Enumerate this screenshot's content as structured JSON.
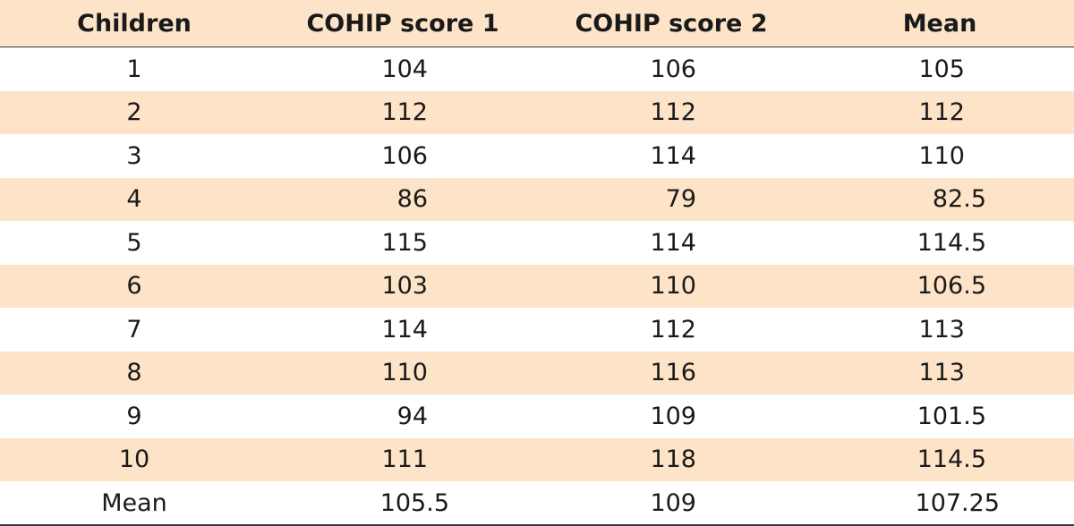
{
  "table": {
    "headers": [
      "Children",
      "COHIP score 1",
      "COHIP score 2",
      "Mean"
    ],
    "rows": [
      [
        "1",
        "104",
        "106",
        "105"
      ],
      [
        "2",
        "112",
        "112",
        "112"
      ],
      [
        "3",
        "106",
        "114",
        "110"
      ],
      [
        "4",
        "86",
        "79",
        "82.5"
      ],
      [
        "5",
        "115",
        "114",
        "114.5"
      ],
      [
        "6",
        "103",
        "110",
        "106.5"
      ],
      [
        "7",
        "114",
        "112",
        "113"
      ],
      [
        "8",
        "110",
        "116",
        "113"
      ],
      [
        "9",
        "94",
        "109",
        "101.5"
      ],
      [
        "10",
        "111",
        "118",
        "114.5"
      ]
    ],
    "mean_row": [
      "Mean",
      "105.5",
      "109",
      "107.25"
    ]
  },
  "colors": {
    "shade": "#fde4c8",
    "rule": "#3a3a3a"
  }
}
